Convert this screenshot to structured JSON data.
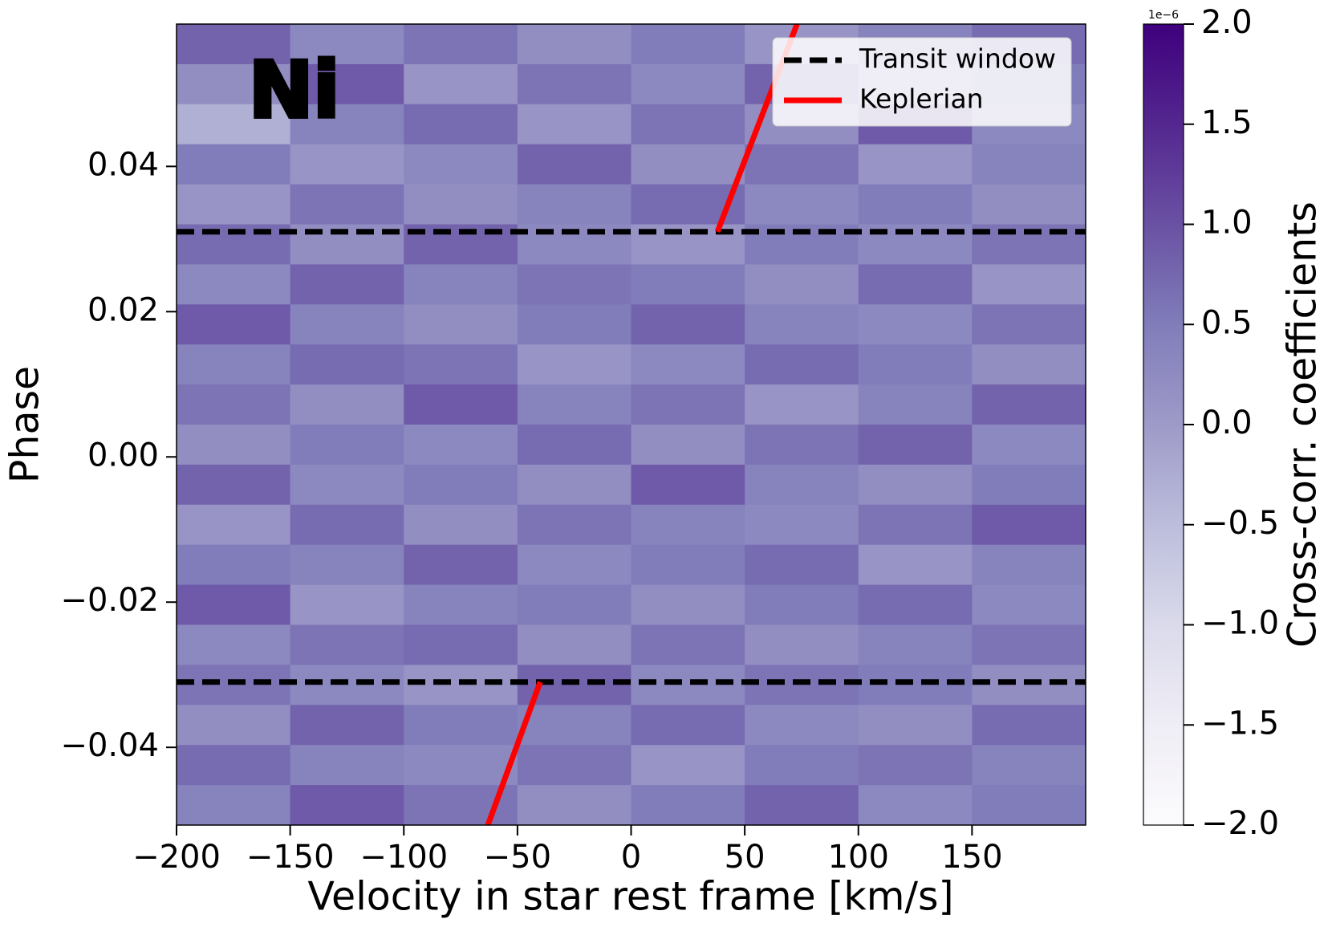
{
  "chart_data": {
    "type": "heatmap",
    "xlabel": "Velocity in star rest frame [km/s]",
    "ylabel": "Phase",
    "annotation": "Ni",
    "colormap": "Purples",
    "colorbar_label": "Cross-corr. coefficients",
    "colorbar_offset": "1e−6",
    "clim": [
      -2,
      2
    ],
    "cticks": [
      {
        "value": -2,
        "label": "−2.0"
      },
      {
        "value": -1.5,
        "label": "−1.5"
      },
      {
        "value": -1,
        "label": "−1.0"
      },
      {
        "value": -0.5,
        "label": "−0.5"
      },
      {
        "value": 0,
        "label": "0.0"
      },
      {
        "value": 0.5,
        "label": "0.5"
      },
      {
        "value": 1,
        "label": "1.0"
      },
      {
        "value": 1.5,
        "label": "1.5"
      },
      {
        "value": 2,
        "label": "2.0"
      }
    ],
    "xlim": [
      -200,
      200
    ],
    "ylim": [
      -0.0507,
      0.0596
    ],
    "xticks": [
      {
        "value": -200,
        "label": "−200"
      },
      {
        "value": -150,
        "label": "−150"
      },
      {
        "value": -100,
        "label": "−100"
      },
      {
        "value": -50,
        "label": "−50"
      },
      0,
      50,
      100,
      150
    ],
    "yticks": [
      {
        "value": -0.04,
        "label": "−0.04"
      },
      {
        "value": -0.02,
        "label": "−0.02"
      },
      {
        "value": 0,
        "label": "0.00"
      },
      0.02,
      0.04
    ],
    "z": [
      [
        0.8,
        0.3,
        0.6,
        0.2,
        0.5,
        0.1,
        0.4,
        0.7
      ],
      [
        0.2,
        0.9,
        0.1,
        0.6,
        0.3,
        0.8,
        0.2,
        0.5
      ],
      [
        -0.3,
        0.4,
        0.7,
        0.1,
        0.6,
        0.2,
        0.9,
        0.3
      ],
      [
        0.5,
        0.1,
        0.3,
        0.8,
        0.2,
        0.6,
        0.1,
        0.4
      ],
      [
        0.1,
        0.6,
        0.2,
        0.4,
        0.7,
        0.3,
        0.5,
        0.2
      ],
      [
        0.7,
        0.2,
        0.8,
        0.3,
        0.1,
        0.5,
        0.3,
        0.6
      ],
      [
        0.3,
        0.8,
        0.4,
        0.6,
        0.5,
        0.2,
        0.7,
        0.1
      ],
      [
        0.9,
        0.4,
        0.2,
        0.5,
        0.8,
        0.4,
        0.3,
        0.6
      ],
      [
        0.4,
        0.7,
        0.6,
        0.1,
        0.3,
        0.7,
        0.5,
        0.2
      ],
      [
        0.6,
        0.2,
        0.9,
        0.4,
        0.6,
        0.1,
        0.4,
        0.8
      ],
      [
        0.2,
        0.5,
        0.3,
        0.7,
        0.2,
        0.6,
        0.8,
        0.3
      ],
      [
        0.8,
        0.3,
        0.5,
        0.2,
        0.9,
        0.4,
        0.2,
        0.5
      ],
      [
        0.1,
        0.7,
        0.2,
        0.6,
        0.4,
        0.3,
        0.6,
        0.9
      ],
      [
        0.5,
        0.4,
        0.8,
        0.3,
        0.5,
        0.7,
        0.1,
        0.4
      ],
      [
        0.9,
        0.1,
        0.4,
        0.5,
        0.2,
        0.5,
        0.7,
        0.3
      ],
      [
        0.3,
        0.6,
        0.7,
        0.2,
        0.6,
        0.2,
        0.4,
        0.6
      ],
      [
        0.6,
        0.3,
        0.1,
        0.8,
        0.3,
        0.6,
        0.5,
        0.2
      ],
      [
        0.2,
        0.8,
        0.5,
        0.4,
        0.7,
        0.3,
        0.2,
        0.7
      ],
      [
        0.7,
        0.4,
        0.3,
        0.6,
        0.1,
        0.5,
        0.6,
        0.4
      ],
      [
        0.4,
        0.9,
        0.6,
        0.2,
        0.5,
        0.8,
        0.3,
        0.5
      ]
    ],
    "series": [
      {
        "name": "Transit window",
        "color": "#000000",
        "style": "dashed",
        "x": [
          -200,
          200,
          null,
          -200,
          200
        ],
        "y": [
          -0.031,
          -0.031,
          null,
          0.031,
          0.031
        ]
      },
      {
        "name": "Keplerian",
        "color": "#ff0000",
        "style": "solid",
        "x": [
          -63,
          -40,
          null,
          38,
          73
        ],
        "y": [
          -0.0507,
          -0.031,
          null,
          0.031,
          0.0596
        ]
      }
    ],
    "legend": "upper right"
  }
}
